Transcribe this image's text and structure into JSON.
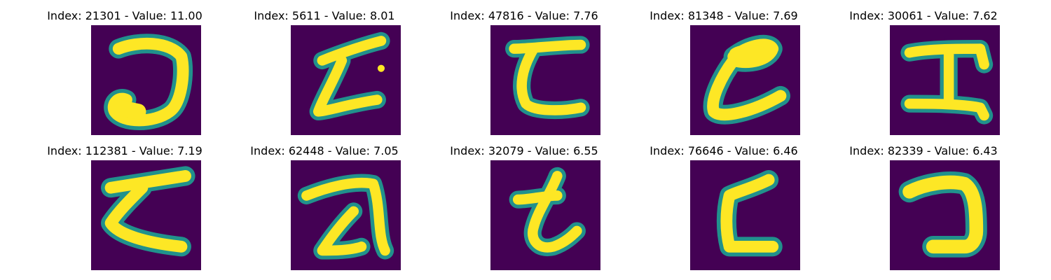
{
  "colors": {
    "background": "#440154",
    "stroke": "#fde725",
    "edge": "#21918c",
    "page": "#ffffff"
  },
  "panels": [
    {
      "title": "Index: 21301 - Value: 11.00"
    },
    {
      "title": "Index: 5611 - Value: 8.01"
    },
    {
      "title": "Index: 47816 - Value: 7.76"
    },
    {
      "title": "Index: 81348 - Value: 7.69"
    },
    {
      "title": "Index: 30061 - Value: 7.62"
    },
    {
      "title": "Index: 112381 - Value: 7.19"
    },
    {
      "title": "Index: 62448 - Value: 7.05"
    },
    {
      "title": "Index: 32079 - Value: 6.55"
    },
    {
      "title": "Index: 76646 - Value: 6.46"
    },
    {
      "title": "Index: 82339 - Value: 6.43"
    }
  ]
}
